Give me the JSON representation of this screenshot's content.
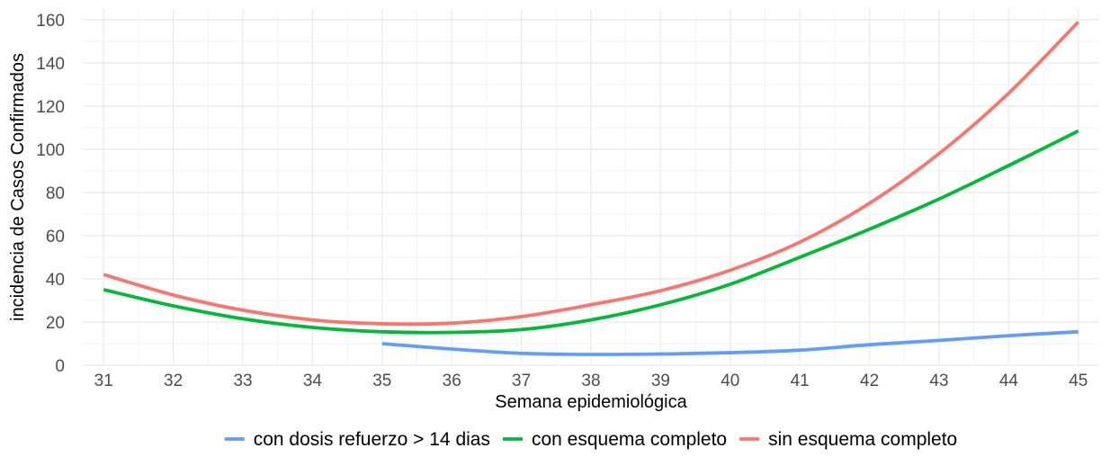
{
  "chart_data": {
    "type": "line",
    "xlabel": "Semana epidemiológica",
    "ylabel": "incidencia de Casos Confirmados",
    "xlim": [
      30.7,
      45.3
    ],
    "ylim": [
      0,
      165
    ],
    "x_ticks": [
      31,
      32,
      33,
      34,
      35,
      36,
      37,
      38,
      39,
      40,
      41,
      42,
      43,
      44,
      45
    ],
    "y_ticks": [
      0,
      20,
      40,
      60,
      80,
      100,
      120,
      140,
      160
    ],
    "grid": true,
    "legend_position": "bottom",
    "series": [
      {
        "name": "con dosis refuerzo > 14 dias",
        "color": "#619CFF",
        "x": [
          35,
          36,
          37,
          38,
          39,
          40,
          41,
          42,
          43,
          44,
          45
        ],
        "y": [
          10,
          7.5,
          5.5,
          5.0,
          5.2,
          5.8,
          7,
          9.5,
          11.5,
          13.7,
          15.5
        ]
      },
      {
        "name": "con esquema completo",
        "color": "#00BA38",
        "x": [
          31,
          32,
          33,
          34,
          35,
          36,
          37,
          38,
          39,
          40,
          41,
          42,
          43,
          44,
          45
        ],
        "y": [
          35,
          27.5,
          21.5,
          17.5,
          15.5,
          15.2,
          16.5,
          21,
          28,
          37.5,
          50,
          63,
          77,
          92.5,
          108.5
        ]
      },
      {
        "name": "sin esquema completo",
        "color": "#F8766D",
        "x": [
          31,
          32,
          33,
          34,
          35,
          36,
          37,
          38,
          39,
          40,
          41,
          42,
          43,
          44,
          45
        ],
        "y": [
          42,
          32.5,
          25.5,
          21,
          19.2,
          19.5,
          22.5,
          28,
          34.5,
          44,
          57,
          75,
          98,
          126,
          159
        ]
      }
    ]
  }
}
